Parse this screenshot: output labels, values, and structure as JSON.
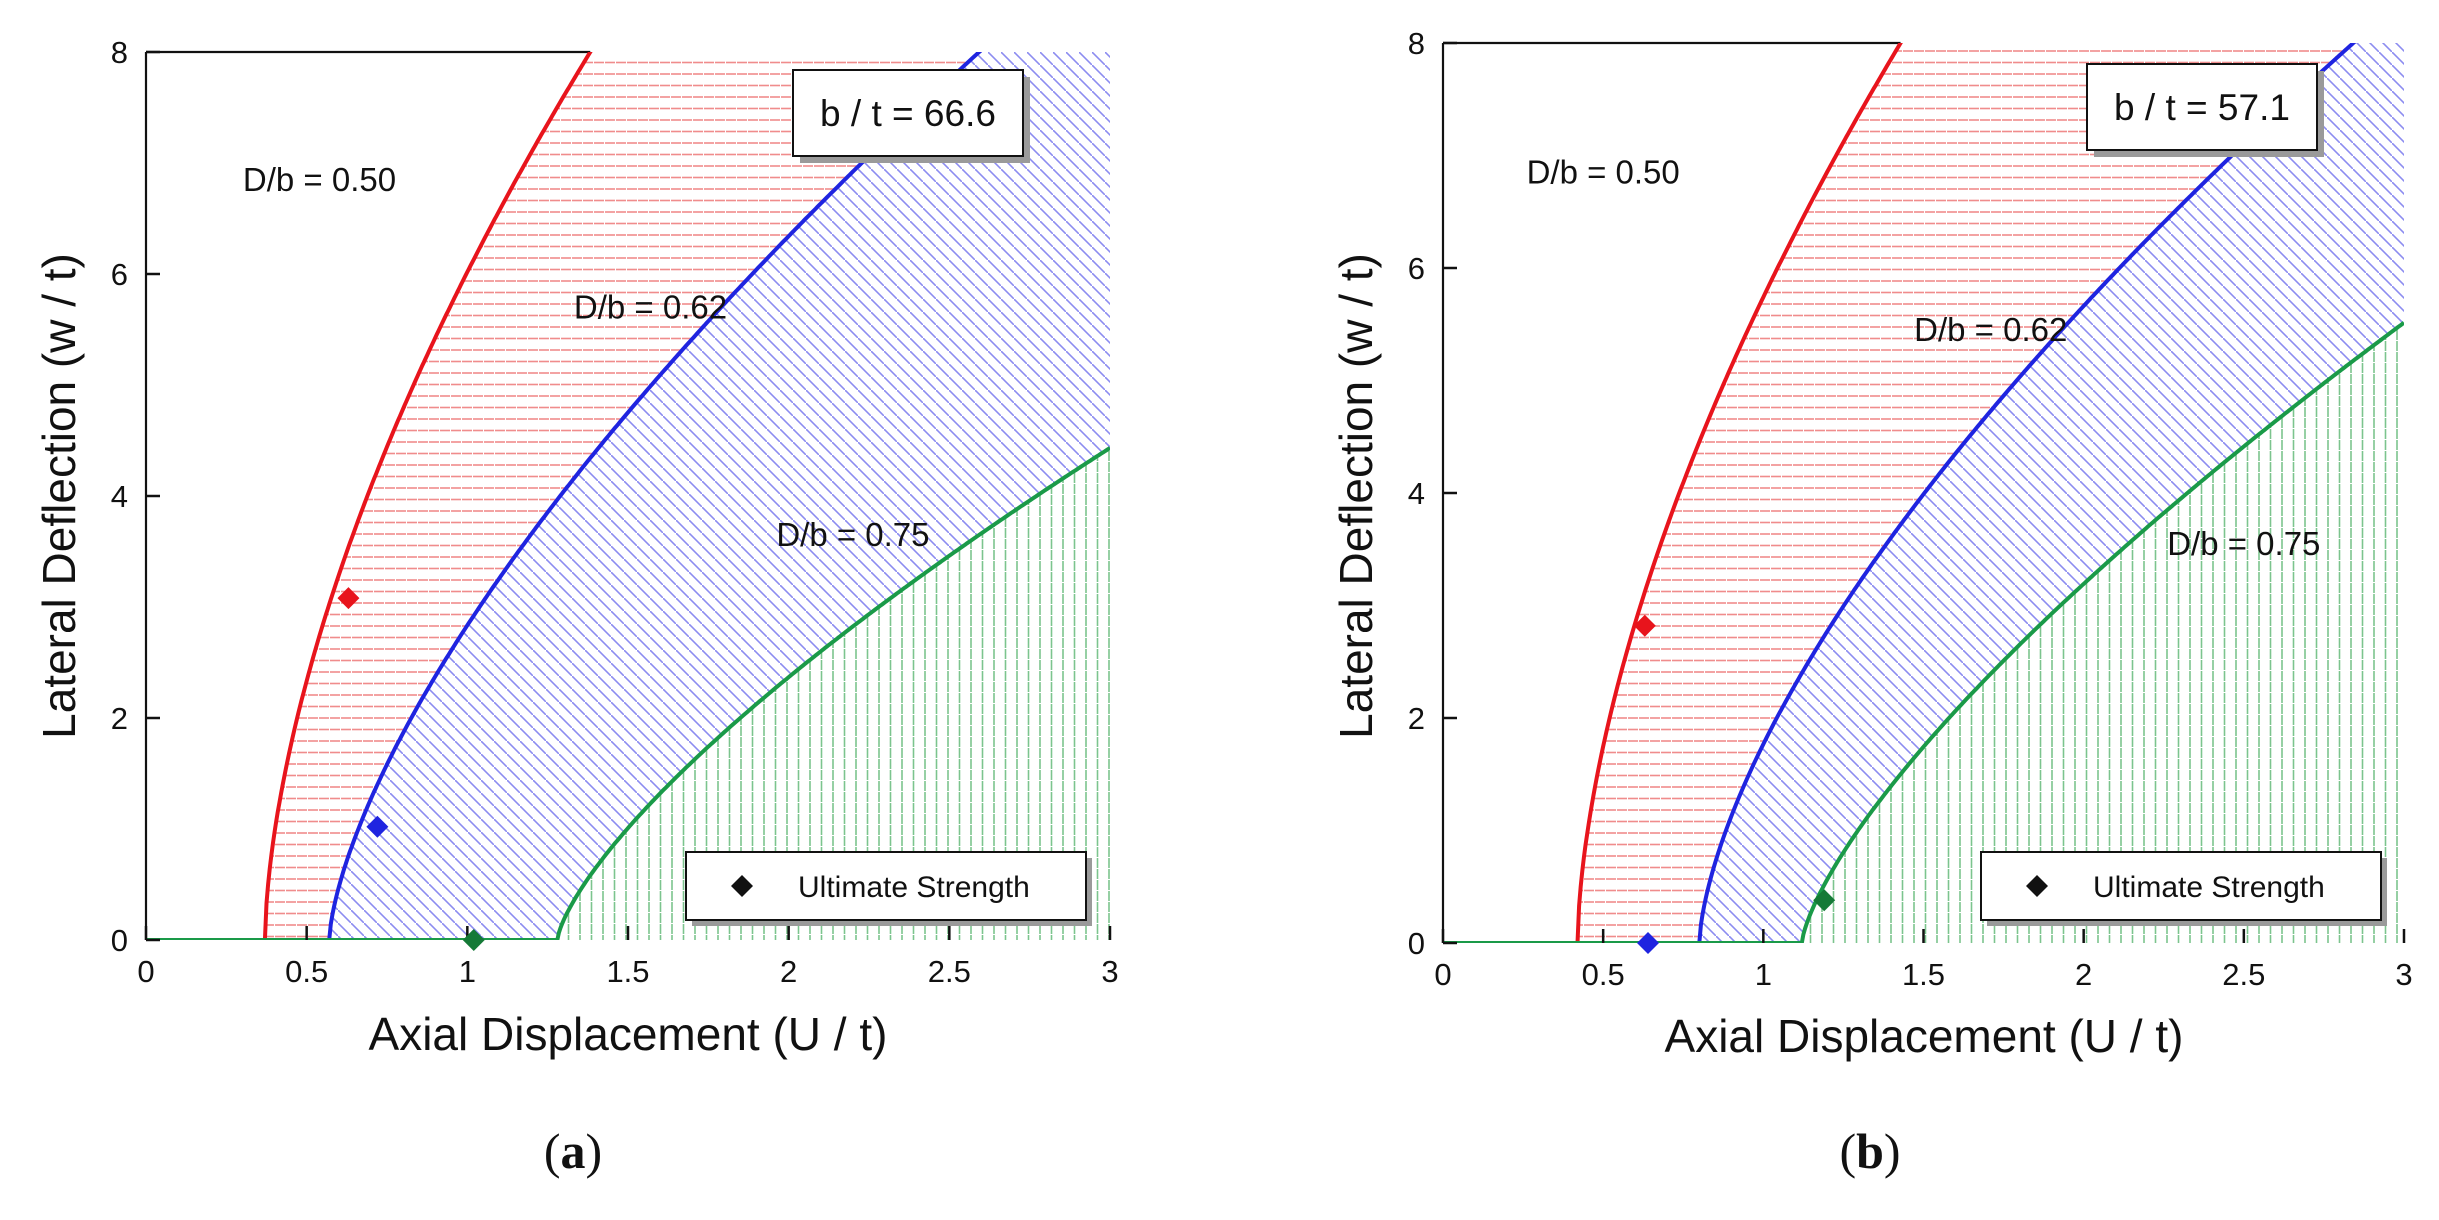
{
  "chart_data": [
    {
      "type": "area",
      "panel": "a",
      "caption": {
        "open": "(",
        "letter": "a",
        "close": ")"
      },
      "xlabel": "Axial Displacement (U / t)",
      "ylabel": "Lateral Deflection (w / t)",
      "xlim": [
        0,
        3
      ],
      "ylim": [
        0,
        8
      ],
      "xticks": [
        0,
        0.5,
        1,
        1.5,
        2,
        2.5,
        3
      ],
      "xtick_labels": [
        "0",
        "0.5",
        "1",
        "1.5",
        "2",
        "2.5",
        "3"
      ],
      "yticks": [
        0,
        2,
        4,
        6,
        8
      ],
      "ytick_labels": [
        "0",
        "2",
        "4",
        "6",
        "8"
      ],
      "ratio_label": "b / t = 66.6",
      "legend": {
        "label": "Ultimate Strength",
        "placement": "bottom-right"
      },
      "series": [
        {
          "name": "D/b = 0.50",
          "label": "D/b = 0.50",
          "color": "#e8141c",
          "hatch": "horizontal",
          "x0": 0.37,
          "k": 7.94,
          "p": 0.6,
          "ultimate": [
            0.63,
            3.08
          ],
          "label_at": [
            0.54,
            6.75
          ]
        },
        {
          "name": "D/b = 0.62",
          "label": "D/b = 0.62",
          "color": "#1f24e0",
          "hatch": "diagonal",
          "x0": 0.57,
          "k": 4.99,
          "p": 0.67,
          "ultimate": [
            0.72,
            1.02
          ],
          "label_at": [
            1.57,
            5.6
          ]
        },
        {
          "name": "D/b = 0.75",
          "label": "D/b = 0.75",
          "color": "#1a9a48",
          "hatch": "vertical",
          "x0": 1.28,
          "k": 3.0,
          "p": 0.72,
          "ultimate": [
            1.02,
            0.0
          ],
          "label_at": [
            2.2,
            3.55
          ]
        }
      ]
    },
    {
      "type": "area",
      "panel": "b",
      "caption": {
        "open": "(",
        "letter": "b",
        "close": ")"
      },
      "xlabel": "Axial Displacement (U / t)",
      "ylabel": "Lateral Deflection (w / t)",
      "xlim": [
        0,
        3
      ],
      "ylim": [
        0,
        8
      ],
      "xticks": [
        0,
        0.5,
        1,
        1.5,
        2,
        2.5,
        3
      ],
      "xtick_labels": [
        "0",
        "0.5",
        "1",
        "1.5",
        "2",
        "2.5",
        "3"
      ],
      "yticks": [
        0,
        2,
        4,
        6,
        8
      ],
      "ytick_labels": [
        "0",
        "2",
        "4",
        "6",
        "8"
      ],
      "ratio_label": "b / t = 57.1",
      "legend": {
        "label": "Ultimate Strength",
        "placement": "bottom-right"
      },
      "series": [
        {
          "name": "D/b = 0.50",
          "label": "D/b = 0.50",
          "color": "#e8141c",
          "hatch": "horizontal",
          "x0": 0.42,
          "k": 7.96,
          "p": 0.6,
          "ultimate": [
            0.63,
            2.82
          ],
          "label_at": [
            0.5,
            6.75
          ]
        },
        {
          "name": "D/b = 0.62",
          "label": "D/b = 0.62",
          "color": "#1f24e0",
          "hatch": "diagonal",
          "x0": 0.8,
          "k": 5.03,
          "p": 0.65,
          "ultimate": [
            0.64,
            0.0
          ],
          "label_at": [
            1.71,
            5.35
          ]
        },
        {
          "name": "D/b = 0.75",
          "label": "D/b = 0.75",
          "color": "#1a9a48",
          "hatch": "vertical",
          "x0": 1.12,
          "k": 3.5,
          "p": 0.72,
          "ultimate": [
            1.19,
            0.38
          ],
          "label_at": [
            2.5,
            3.45
          ]
        }
      ]
    }
  ]
}
